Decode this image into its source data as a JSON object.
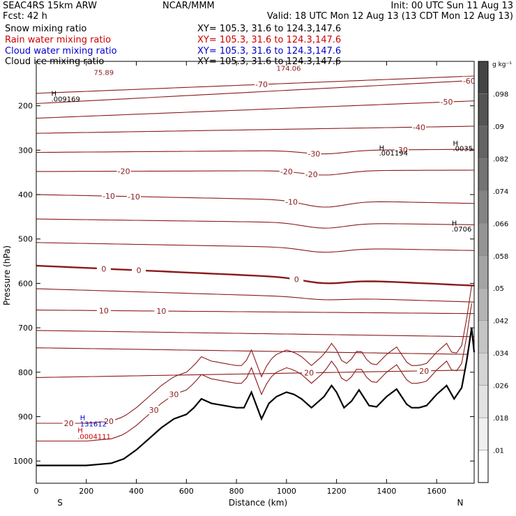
{
  "header": {
    "model": "SEAC4RS 15km ARW",
    "forecast": "Fcst:   42 h",
    "center": "NCAR/MMM",
    "init": "Init: 00 UTC Sun 11 Aug 13",
    "valid": "Valid: 18 UTC Mon 12 Aug 13 (13 CDT Mon 12 Aug 13)"
  },
  "fields": [
    {
      "name": "Snow mixing ratio",
      "xy": "XY= 105.3, 31.6 to 124.3,147.6",
      "color": "#000000"
    },
    {
      "name": "Rain water mixing ratio",
      "xy": "XY= 105.3, 31.6 to 124.3,147.6",
      "color": "#cc0000"
    },
    {
      "name": "Cloud water mixing ratio",
      "xy": "XY= 105.3, 31.6 to 124.3,147.6",
      "color": "#0000cc"
    },
    {
      "name": "Cloud ice mixing ratio",
      "xy": "XY= 105.3, 31.6 to 124.3,147.6",
      "color": "#000000"
    }
  ],
  "colorbar": {
    "units": "g kg⁻¹",
    "ticks": [
      ".01",
      ".018",
      ".026",
      ".034",
      ".042",
      ".05",
      ".058",
      ".066",
      ".074",
      ".082",
      ".09",
      ".098"
    ],
    "colors": [
      "#ffffff",
      "#f0f0f0",
      "#e2e2e2",
      "#d4d4d4",
      "#c4c4c4",
      "#b4b4b4",
      "#a4a4a4",
      "#949494",
      "#848484",
      "#747474",
      "#646464",
      "#545454",
      "#444444"
    ]
  },
  "chart_data": {
    "type": "cross-section contour",
    "xlabel": "Distance (km)",
    "ylabel": "Pressure (hPa)",
    "xlim": [
      0,
      1750
    ],
    "ylim": [
      1050,
      100
    ],
    "x_ticks": [
      0,
      200,
      400,
      600,
      800,
      1000,
      1200,
      1400,
      1600
    ],
    "y_ticks": [
      200,
      300,
      400,
      500,
      600,
      700,
      800,
      900,
      1000
    ],
    "y_tick_labels": [
      "200",
      "300",
      "400",
      "500",
      "600",
      "700",
      "800",
      "900",
      "1000"
    ],
    "end_labels": {
      "left": "S",
      "right": "N"
    },
    "temperature_color": "#8b1a1a",
    "terrain": {
      "x": [
        0,
        100,
        200,
        300,
        350,
        400,
        450,
        500,
        550,
        600,
        630,
        660,
        700,
        750,
        800,
        830,
        860,
        880,
        900,
        930,
        960,
        1000,
        1030,
        1060,
        1100,
        1150,
        1180,
        1200,
        1230,
        1260,
        1290,
        1330,
        1360,
        1400,
        1440,
        1480,
        1500,
        1530,
        1560,
        1600,
        1640,
        1670,
        1700,
        1720,
        1740,
        1750
      ],
      "p": [
        1010,
        1010,
        1010,
        1005,
        995,
        975,
        950,
        925,
        905,
        895,
        880,
        860,
        870,
        875,
        880,
        880,
        845,
        875,
        905,
        870,
        855,
        845,
        850,
        860,
        880,
        855,
        830,
        845,
        880,
        865,
        840,
        875,
        878,
        855,
        838,
        872,
        880,
        880,
        875,
        850,
        830,
        860,
        835,
        775,
        700,
        755
      ]
    },
    "isotherms": [
      {
        "label": "-70",
        "p0": 172,
        "p1": 133,
        "bump": 0,
        "thick": false,
        "labels": [
          [
            900,
            "-70"
          ]
        ]
      },
      {
        "label": "-60",
        "p0": 195,
        "p1": 143,
        "bump": 0,
        "thick": false,
        "labels": [
          [
            1730,
            "-60"
          ]
        ]
      },
      {
        "label": "-50",
        "p0": 228,
        "p1": 189,
        "bump": 0,
        "thick": false,
        "labels": [
          [
            1640,
            "-50"
          ]
        ]
      },
      {
        "label": "-40",
        "p0": 262,
        "p1": 246,
        "bump": 0,
        "thick": false,
        "labels": [
          [
            1530,
            "-40"
          ]
        ]
      },
      {
        "label": "-30",
        "p0": 305,
        "p1": 298,
        "bump": 8,
        "thick": false,
        "labels": [
          [
            1110,
            "-30"
          ],
          [
            1460,
            "-30"
          ]
        ]
      },
      {
        "label": "-20",
        "p0": 348,
        "p1": 345,
        "bump": 10,
        "thick": false,
        "labels": [
          [
            350,
            "-20"
          ],
          [
            1000,
            "-20"
          ],
          [
            1100,
            "-20"
          ]
        ]
      },
      {
        "label": "-10",
        "p0": 400,
        "p1": 420,
        "bump": 15,
        "thick": false,
        "labels": [
          [
            290,
            "-10"
          ],
          [
            390,
            "-10"
          ],
          [
            1020,
            "-10"
          ]
        ]
      },
      {
        "label": "none",
        "p0": 455,
        "p1": 468,
        "bump": 12,
        "thick": false,
        "labels": []
      },
      {
        "label": "none",
        "p0": 508,
        "p1": 526,
        "bump": 10,
        "thick": false,
        "labels": []
      },
      {
        "label": "0",
        "p0": 560,
        "p1": 605,
        "bump": 10,
        "thick": true,
        "labels": [
          [
            270,
            "0"
          ],
          [
            410,
            "0"
          ],
          [
            1040,
            "0"
          ]
        ]
      },
      {
        "label": "none",
        "p0": 612,
        "p1": 642,
        "bump": 5,
        "thick": false,
        "labels": []
      },
      {
        "label": "10",
        "p0": 660,
        "p1": 668,
        "bump": 0,
        "thick": false,
        "labels": [
          [
            270,
            "10"
          ],
          [
            500,
            "10"
          ]
        ]
      },
      {
        "label": "none",
        "p0": 706,
        "p1": 720,
        "bump": 0,
        "thick": false,
        "labels": []
      },
      {
        "label": "none",
        "p0": 745,
        "p1": 760,
        "bump": 0,
        "thick": false,
        "labels": []
      },
      {
        "label": "20",
        "p0": 812,
        "p1": 795,
        "bump": 0,
        "thick": false,
        "labels": [
          [
            1090,
            "20"
          ],
          [
            1550,
            "20"
          ]
        ]
      }
    ],
    "terrain_following": [
      {
        "offset": 95,
        "labels": [
          [
            130,
            "20"
          ],
          [
            290,
            "20"
          ]
        ]
      },
      {
        "offset": 55,
        "labels": [
          [
            550,
            "30"
          ],
          [
            470,
            "30"
          ]
        ]
      }
    ],
    "annotations": [
      {
        "text": "75.89",
        "x": 230,
        "p": 131,
        "color": "#8b1a1a"
      },
      {
        "text": "174.06",
        "x": 960,
        "p": 121,
        "color": "#8b1a1a"
      },
      {
        "text": "H",
        "x": 60,
        "p": 178,
        "color": "#000000"
      },
      {
        "text": ".009169",
        "x": 60,
        "p": 190,
        "color": "#000000"
      },
      {
        "text": "H",
        "x": 1370,
        "p": 300,
        "color": "#000000"
      },
      {
        "text": ".001194",
        "x": 1370,
        "p": 312,
        "color": "#000000"
      },
      {
        "text": "H",
        "x": 1665,
        "p": 290,
        "color": "#000000"
      },
      {
        "text": ".0035",
        "x": 1665,
        "p": 302,
        "color": "#000000"
      },
      {
        "text": "H",
        "x": 1660,
        "p": 470,
        "color": "#000000"
      },
      {
        "text": ".0706",
        "x": 1660,
        "p": 483,
        "color": "#000000"
      },
      {
        "text": "H",
        "x": 175,
        "p": 908,
        "color": "#0000cc"
      },
      {
        "text": "131612",
        "x": 175,
        "p": 922,
        "color": "#0000cc"
      },
      {
        "text": "H",
        "x": 165,
        "p": 936,
        "color": "#cc0000"
      },
      {
        "text": ".0004111",
        "x": 165,
        "p": 950,
        "color": "#cc0000"
      }
    ]
  }
}
